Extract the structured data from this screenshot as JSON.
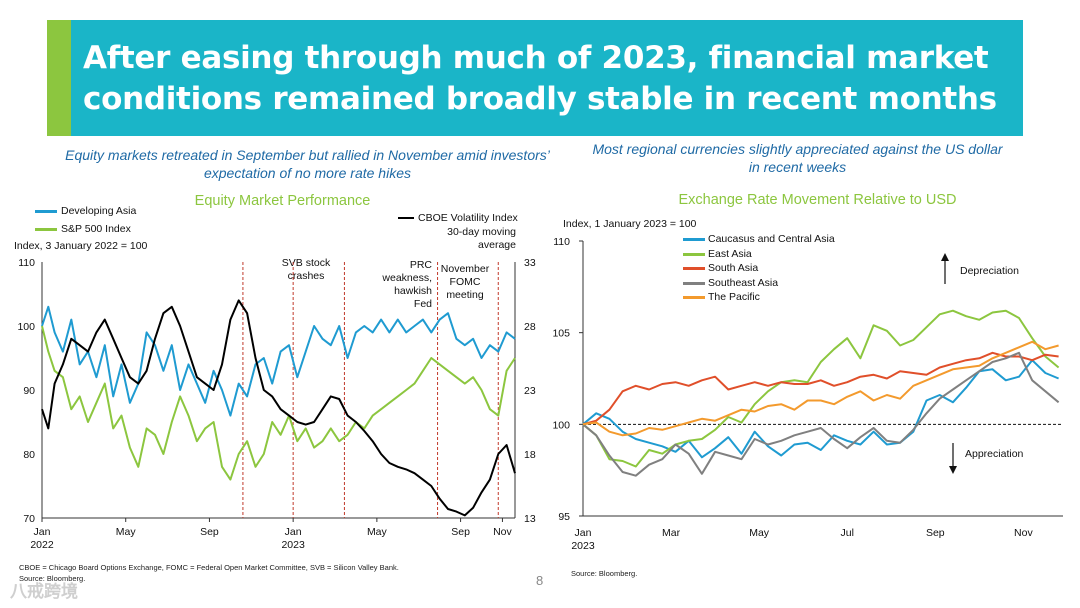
{
  "header": {
    "title": "After easing through much of 2023, financial market conditions remained broadly stable in recent months"
  },
  "left_panel": {
    "subtitle": "Equity markets retreated in September but rallied in November amid investors’ expectation of no more rate hikes",
    "chart_title": "Equity Market Performance",
    "legend": [
      {
        "label": "Developing Asia",
        "color": "#1f9bd1"
      },
      {
        "label": "S&P 500 Index",
        "color": "#8cc63f"
      }
    ],
    "legend_right": {
      "label": "CBOE Volatility Index",
      "sublabel": "30-day moving average",
      "color": "#000000"
    },
    "axis_note": "Index, 3 January 2022 = 100",
    "annotations": [
      {
        "text": "SVB stock\ncrashes"
      },
      {
        "text": "PRC\nweakness,\nhawkish\nFed"
      },
      {
        "text": "November\nFOMC\nmeeting"
      }
    ],
    "footnote": "CBOE = Chicago Board Options Exchange, FOMC = Federal Open Market Committee, SVB = Silicon Valley Bank.",
    "source": "Source: Bloomberg."
  },
  "right_panel": {
    "subtitle": "Most regional currencies slightly appreciated against the US dollar in recent weeks",
    "chart_title": "Exchange Rate Movement Relative to USD",
    "axis_note": "Index, 1 January 2023 = 100",
    "legend": [
      {
        "label": "Caucasus and Central Asia",
        "color": "#1f9bd1"
      },
      {
        "label": "East Asia",
        "color": "#8cc63f"
      },
      {
        "label": "South Asia",
        "color": "#e04f2a"
      },
      {
        "label": "Southeast Asia",
        "color": "#808080"
      },
      {
        "label": "The Pacific",
        "color": "#f39a2d"
      }
    ],
    "depreciation_label": "Depreciation",
    "appreciation_label": "Appreciation",
    "source": "Source: Bloomberg."
  },
  "page_number": "8",
  "watermark": "八戒跨境",
  "chart_data": [
    {
      "type": "line",
      "title": "Equity Market Performance",
      "ylabel": "Index, 3 January 2022 = 100",
      "ylim": [
        70,
        110
      ],
      "yticks": [
        70,
        80,
        90,
        100,
        110
      ],
      "y2lim": [
        13,
        33
      ],
      "y2ticks": [
        13,
        18,
        23,
        28,
        33
      ],
      "x_ticks": [
        "Jan\n2022",
        "May",
        "Sep",
        "Jan\n2023",
        "May",
        "Sep",
        "Nov"
      ],
      "x_tick_months": [
        0,
        4,
        8,
        12,
        16,
        20,
        22
      ],
      "xlim_months": [
        0,
        22.6
      ],
      "event_lines_months": [
        9.6,
        12.0,
        14.45,
        18.9,
        21.8
      ],
      "series": [
        {
          "name": "Developing Asia",
          "axis": "left",
          "color": "#1f9bd1",
          "x": [
            0,
            0.3,
            0.6,
            1,
            1.4,
            1.8,
            2.2,
            2.6,
            3,
            3.4,
            3.8,
            4.2,
            4.6,
            5,
            5.4,
            5.8,
            6.2,
            6.6,
            7,
            7.4,
            7.8,
            8.2,
            8.6,
            9,
            9.4,
            9.8,
            10.2,
            10.6,
            11,
            11.4,
            11.8,
            12.2,
            12.6,
            13,
            13.4,
            13.8,
            14.2,
            14.6,
            15,
            15.4,
            15.8,
            16.2,
            16.6,
            17,
            17.4,
            17.8,
            18.2,
            18.6,
            19,
            19.4,
            19.8,
            20.2,
            20.6,
            21,
            21.4,
            21.8,
            22.2,
            22.6
          ],
          "y": [
            100,
            103,
            99,
            96,
            101,
            94,
            96,
            92,
            97,
            89,
            94,
            88,
            91,
            99,
            97,
            93,
            97,
            90,
            94,
            91,
            88,
            93,
            90,
            86,
            91,
            89,
            94,
            95,
            91,
            96,
            97,
            92,
            96,
            100,
            98,
            97,
            100,
            95,
            99,
            100,
            99,
            101,
            99,
            101,
            99,
            100,
            101,
            99,
            101,
            102,
            98,
            97,
            98,
            95,
            97,
            96,
            99,
            98
          ]
        },
        {
          "name": "S&P 500 Index",
          "axis": "left",
          "color": "#8cc63f",
          "x": [
            0,
            0.3,
            0.6,
            1,
            1.4,
            1.8,
            2.2,
            2.6,
            3,
            3.4,
            3.8,
            4.2,
            4.6,
            5,
            5.4,
            5.8,
            6.2,
            6.6,
            7,
            7.4,
            7.8,
            8.2,
            8.6,
            9,
            9.4,
            9.8,
            10.2,
            10.6,
            11,
            11.4,
            11.8,
            12.2,
            12.6,
            13,
            13.4,
            13.8,
            14.2,
            14.6,
            15,
            15.4,
            15.8,
            16.2,
            16.6,
            17,
            17.4,
            17.8,
            18.2,
            18.6,
            19,
            19.4,
            19.8,
            20.2,
            20.6,
            21,
            21.4,
            21.8,
            22.2,
            22.6
          ],
          "y": [
            100,
            96,
            93,
            92,
            87,
            89,
            85,
            88,
            91,
            84,
            86,
            81,
            78,
            84,
            83,
            80,
            85,
            89,
            86,
            82,
            84,
            85,
            78,
            76,
            80,
            82,
            78,
            80,
            85,
            83,
            86,
            82,
            84,
            81,
            82,
            84,
            82,
            83,
            85,
            84,
            86,
            87,
            88,
            89,
            90,
            91,
            93,
            95,
            94,
            93,
            92,
            91,
            92,
            90,
            87,
            86,
            93,
            95
          ]
        },
        {
          "name": "CBOE Volatility Index",
          "axis": "right",
          "color": "#000000",
          "x": [
            0,
            0.3,
            0.6,
            1,
            1.4,
            1.8,
            2.2,
            2.6,
            3,
            3.4,
            3.8,
            4.2,
            4.6,
            5,
            5.4,
            5.8,
            6.2,
            6.6,
            7,
            7.4,
            7.8,
            8.2,
            8.6,
            9,
            9.4,
            9.8,
            10.2,
            10.6,
            11,
            11.4,
            11.8,
            12.2,
            12.6,
            13,
            13.4,
            13.8,
            14.2,
            14.6,
            15,
            15.4,
            15.8,
            16.2,
            16.6,
            17,
            17.4,
            17.8,
            18.2,
            18.6,
            19,
            19.4,
            19.8,
            20.2,
            20.6,
            21,
            21.4,
            21.8,
            22.2,
            22.6
          ],
          "y": [
            21.5,
            20,
            23.5,
            25,
            27,
            26.5,
            26,
            27.5,
            28.5,
            27,
            25.5,
            24,
            23.5,
            24.5,
            27,
            29,
            29.5,
            28,
            26,
            24,
            23.5,
            23,
            25,
            28.5,
            30,
            29,
            25.5,
            23,
            22.5,
            21.5,
            21,
            20.5,
            20.3,
            20.5,
            21.5,
            22.5,
            22.3,
            21,
            20.5,
            19.8,
            19,
            18,
            17.3,
            17,
            16.8,
            16.5,
            16,
            15.5,
            14.5,
            13.7,
            13.5,
            13.2,
            13.8,
            15,
            16,
            18,
            18.7,
            16.5
          ]
        }
      ]
    },
    {
      "type": "line",
      "title": "Exchange Rate Movement Relative to USD",
      "ylabel": "Index, 1 January 2023 = 100",
      "ylim": [
        95,
        110
      ],
      "yticks": [
        95,
        100,
        105,
        110
      ],
      "x_ticks": [
        "Jan\n2023",
        "Mar",
        "May",
        "Jul",
        "Sep",
        "Nov"
      ],
      "x_tick_months": [
        0,
        2,
        4,
        6,
        8,
        10
      ],
      "xlim_months": [
        0,
        10.9
      ],
      "reference_line": 100,
      "series": [
        {
          "name": "Caucasus and Central Asia",
          "color": "#1f9bd1",
          "x": [
            0,
            0.3,
            0.6,
            0.9,
            1.2,
            1.5,
            1.8,
            2.1,
            2.4,
            2.7,
            3,
            3.3,
            3.6,
            3.9,
            4.2,
            4.5,
            4.8,
            5.1,
            5.4,
            5.7,
            6,
            6.3,
            6.6,
            6.9,
            7.2,
            7.5,
            7.8,
            8.1,
            8.4,
            8.7,
            9,
            9.3,
            9.6,
            9.9,
            10.2,
            10.5,
            10.8
          ],
          "y": [
            100,
            100.6,
            100.3,
            99.6,
            99.2,
            99,
            98.8,
            98.5,
            99.1,
            98.2,
            98.7,
            99.3,
            98.4,
            99.6,
            98.8,
            98.3,
            98.9,
            99,
            98.6,
            99.4,
            99.1,
            98.9,
            99.6,
            98.9,
            99,
            99.6,
            101.3,
            101.6,
            101.2,
            102,
            102.9,
            103,
            102.4,
            102.6,
            103.5,
            102.8,
            102.5
          ]
        },
        {
          "name": "East Asia",
          "color": "#8cc63f",
          "x": [
            0,
            0.3,
            0.6,
            0.9,
            1.2,
            1.5,
            1.8,
            2.1,
            2.4,
            2.7,
            3,
            3.3,
            3.6,
            3.9,
            4.2,
            4.5,
            4.8,
            5.1,
            5.4,
            5.7,
            6,
            6.3,
            6.6,
            6.9,
            7.2,
            7.5,
            7.8,
            8.1,
            8.4,
            8.7,
            9,
            9.3,
            9.6,
            9.9,
            10.2,
            10.5,
            10.8
          ],
          "y": [
            100,
            99.4,
            98.1,
            98,
            97.7,
            98.6,
            98.4,
            98.9,
            99.1,
            99.2,
            99.7,
            100.4,
            100.1,
            101.1,
            101.8,
            102.3,
            102.4,
            102.3,
            103.4,
            104.1,
            104.7,
            103.6,
            105.4,
            105.1,
            104.3,
            104.6,
            105.3,
            106,
            106.2,
            105.9,
            105.7,
            106.1,
            106.2,
            105.8,
            104.7,
            103.7,
            103.1
          ]
        },
        {
          "name": "South Asia",
          "color": "#e04f2a",
          "x": [
            0,
            0.3,
            0.6,
            0.9,
            1.2,
            1.5,
            1.8,
            2.1,
            2.4,
            2.7,
            3,
            3.3,
            3.6,
            3.9,
            4.2,
            4.5,
            4.8,
            5.1,
            5.4,
            5.7,
            6,
            6.3,
            6.6,
            6.9,
            7.2,
            7.5,
            7.8,
            8.1,
            8.4,
            8.7,
            9,
            9.3,
            9.6,
            9.9,
            10.2,
            10.5,
            10.8
          ],
          "y": [
            100,
            100.2,
            100.8,
            101.8,
            102.1,
            101.9,
            102.2,
            102.3,
            102.1,
            102.4,
            102.6,
            101.9,
            102.1,
            102.3,
            102.1,
            102.3,
            102.2,
            102.2,
            102.4,
            102.1,
            102.3,
            102.6,
            102.7,
            102.5,
            102.9,
            102.8,
            102.7,
            103.1,
            103.3,
            103.5,
            103.6,
            103.9,
            103.7,
            103.7,
            103.5,
            103.8,
            103.7
          ]
        },
        {
          "name": "Southeast Asia",
          "color": "#808080",
          "x": [
            0,
            0.3,
            0.6,
            0.9,
            1.2,
            1.5,
            1.8,
            2.1,
            2.4,
            2.7,
            3,
            3.3,
            3.6,
            3.9,
            4.2,
            4.5,
            4.8,
            5.1,
            5.4,
            5.7,
            6,
            6.3,
            6.6,
            6.9,
            7.2,
            7.5,
            7.8,
            8.1,
            8.4,
            8.7,
            9,
            9.3,
            9.6,
            9.9,
            10.2,
            10.5,
            10.8
          ],
          "y": [
            100,
            99.4,
            98.3,
            97.4,
            97.2,
            97.8,
            98.1,
            98.9,
            98.4,
            97.3,
            98.5,
            98.3,
            98.1,
            99.2,
            98.9,
            99.1,
            99.4,
            99.6,
            99.8,
            99.2,
            98.7,
            99.3,
            99.8,
            99.1,
            99,
            99.7,
            100.6,
            101.4,
            101.9,
            102.4,
            102.9,
            103.4,
            103.6,
            103.9,
            102.4,
            101.8,
            101.2
          ]
        },
        {
          "name": "The Pacific",
          "color": "#f39a2d",
          "x": [
            0,
            0.3,
            0.6,
            0.9,
            1.2,
            1.5,
            1.8,
            2.1,
            2.4,
            2.7,
            3,
            3.3,
            3.6,
            3.9,
            4.2,
            4.5,
            4.8,
            5.1,
            5.4,
            5.7,
            6,
            6.3,
            6.6,
            6.9,
            7.2,
            7.5,
            7.8,
            8.1,
            8.4,
            8.7,
            9,
            9.3,
            9.6,
            9.9,
            10.2,
            10.5,
            10.8
          ],
          "y": [
            100,
            100.1,
            99.6,
            99.4,
            99.5,
            99.8,
            99.7,
            99.9,
            100.1,
            100.3,
            100.2,
            100.5,
            100.8,
            100.7,
            101,
            101.1,
            100.8,
            101.3,
            101.3,
            101.1,
            101.5,
            101.8,
            101.3,
            101.6,
            101.4,
            102.1,
            102.4,
            102.7,
            103,
            103.1,
            103.2,
            103.6,
            103.9,
            104.2,
            104.5,
            104.1,
            104.3
          ]
        }
      ]
    }
  ]
}
